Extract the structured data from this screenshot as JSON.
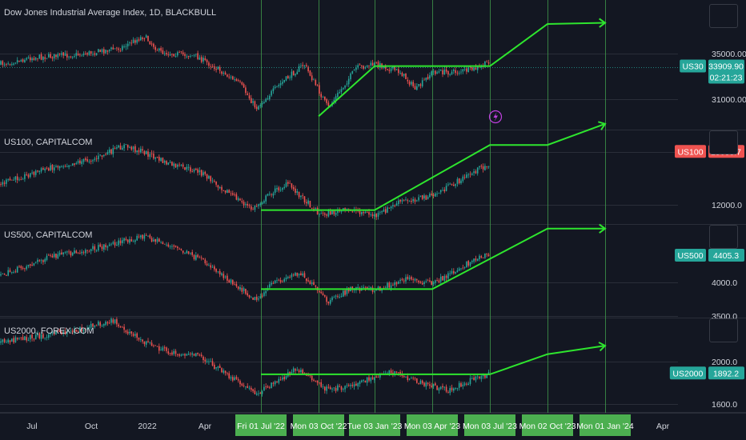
{
  "chart_data": {
    "type": "line",
    "x_ticks": [
      "Jul",
      "Oct",
      "2022",
      "Apr",
      "Fri 01 Jul '22",
      "Mon 03 Oct '22",
      "Tue 03 Jan '23",
      "Mon 03 Apr '23",
      "Mon 03 Jul '23",
      "Mon 02 Oct '23",
      "Mon 01 Jan '24",
      "Apr"
    ],
    "projection_dates": [
      "Fri 01 Jul '22",
      "Mon 03 Oct '22",
      "Tue 03 Jan '23",
      "Mon 03 Apr '23",
      "Mon 03 Jul '23",
      "Mon 02 Oct '23",
      "Mon 01 Jan '24"
    ],
    "panes": [
      {
        "title": "Dow Jones Industrial Average Index, 1D, BLACKBULL",
        "symbol": "US30",
        "last_price": "33909.90",
        "countdown": "02:21:23",
        "badge_color": "#26a69a",
        "y_ticks": [
          "35000.00",
          "31000.00"
        ],
        "projection": [
          [
            "Mon 03 Oct '22",
            29500
          ],
          [
            "Tue 03 Jan '23",
            33900
          ],
          [
            "Mon 03 Jul '23",
            33900
          ],
          [
            "Mon 02 Oct '23",
            37600
          ],
          [
            "Mon 01 Jan '24",
            37700
          ]
        ]
      },
      {
        "title": "US100, CAPITALCOM",
        "symbol": "US100",
        "last_price": "15033.7",
        "badge_color": "#ef5350",
        "y_ticks": [
          "12000.0"
        ],
        "projection": [
          [
            "Fri 01 Jul '22",
            11700
          ],
          [
            "Tue 03 Jan '23",
            11700
          ],
          [
            "Mon 03 Jul '23",
            15400
          ],
          [
            "Mon 02 Oct '23",
            15400
          ],
          [
            "Mon 01 Jan '24",
            16600
          ]
        ]
      },
      {
        "title": "US500, CAPITALCOM",
        "symbol": "US500",
        "last_price": "4405.3",
        "badge_color": "#26a69a",
        "y_ticks": [
          "4000.0",
          "3500.0"
        ],
        "projection": [
          [
            "Fri 01 Jul '22",
            3900
          ],
          [
            "Mon 03 Apr '23",
            3900
          ],
          [
            "Mon 02 Oct '23",
            4800
          ],
          [
            "Mon 01 Jan '24",
            4800
          ]
        ]
      },
      {
        "title": "US2000, FOREX.COM",
        "symbol": "US2000",
        "last_price": "1892.2",
        "badge_color": "#26a69a",
        "y_ticks": [
          "2000.0",
          "1600.0"
        ],
        "projection": [
          [
            "Fri 01 Jul '22",
            1880
          ],
          [
            "Mon 03 Jul '23",
            1880
          ],
          [
            "Mon 02 Oct '23",
            2070
          ],
          [
            "Mon 01 Jan '24",
            2150
          ]
        ]
      }
    ],
    "colors": {
      "background": "#131722",
      "projection": "#2ee52e",
      "up": "#26a69a",
      "down": "#ef5350",
      "date_badge": "#4caf50"
    }
  }
}
